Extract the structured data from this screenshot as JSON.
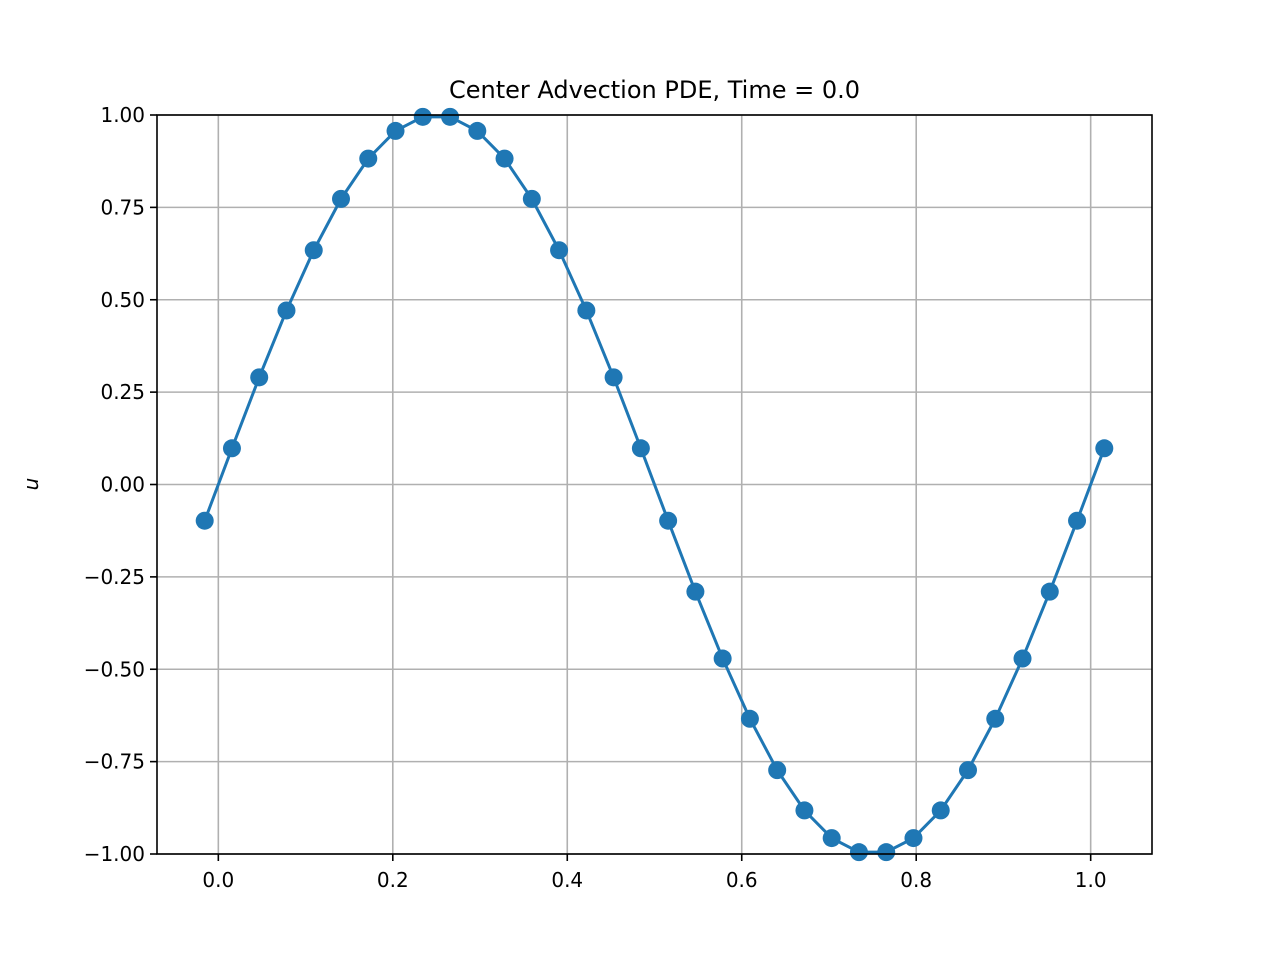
{
  "chart_data": {
    "type": "line",
    "title": "Center Advection PDE, Time = 0.0",
    "xlabel": "",
    "ylabel": "u",
    "xlim": [
      -0.0703,
      1.0703
    ],
    "ylim": [
      -1.0,
      1.0
    ],
    "grid": true,
    "markers": true,
    "color": "#1f77b4",
    "xticks": [
      0.0,
      0.2,
      0.4,
      0.6,
      0.8,
      1.0
    ],
    "xtick_labels": [
      "0.0",
      "0.2",
      "0.4",
      "0.6",
      "0.8",
      "1.0"
    ],
    "yticks": [
      1.0,
      0.75,
      0.5,
      0.25,
      0.0,
      -0.25,
      -0.5,
      -0.75,
      -1.0
    ],
    "ytick_labels": [
      "1.00",
      "0.75",
      "0.50",
      "0.25",
      "0.00",
      "−0.25",
      "−0.50",
      "−0.75",
      "−1.00"
    ],
    "series": [
      {
        "x": [
          -0.015625,
          0.015625,
          0.046875,
          0.078125,
          0.109375,
          0.140625,
          0.171875,
          0.203125,
          0.234375,
          0.265625,
          0.296875,
          0.328125,
          0.359375,
          0.390625,
          0.421875,
          0.453125,
          0.484375,
          0.515625,
          0.546875,
          0.578125,
          0.609375,
          0.640625,
          0.671875,
          0.703125,
          0.734375,
          0.765625,
          0.796875,
          0.828125,
          0.859375,
          0.890625,
          0.921875,
          0.953125,
          0.984375,
          1.015625
        ],
        "values": [
          -0.098,
          0.098,
          0.29,
          0.471,
          0.634,
          0.773,
          0.882,
          0.957,
          0.995,
          0.995,
          0.957,
          0.882,
          0.773,
          0.634,
          0.471,
          0.29,
          0.098,
          -0.098,
          -0.29,
          -0.471,
          -0.634,
          -0.773,
          -0.882,
          -0.957,
          -0.995,
          -0.995,
          -0.957,
          -0.882,
          -0.773,
          -0.634,
          -0.471,
          -0.29,
          -0.098,
          0.098
        ]
      }
    ]
  }
}
